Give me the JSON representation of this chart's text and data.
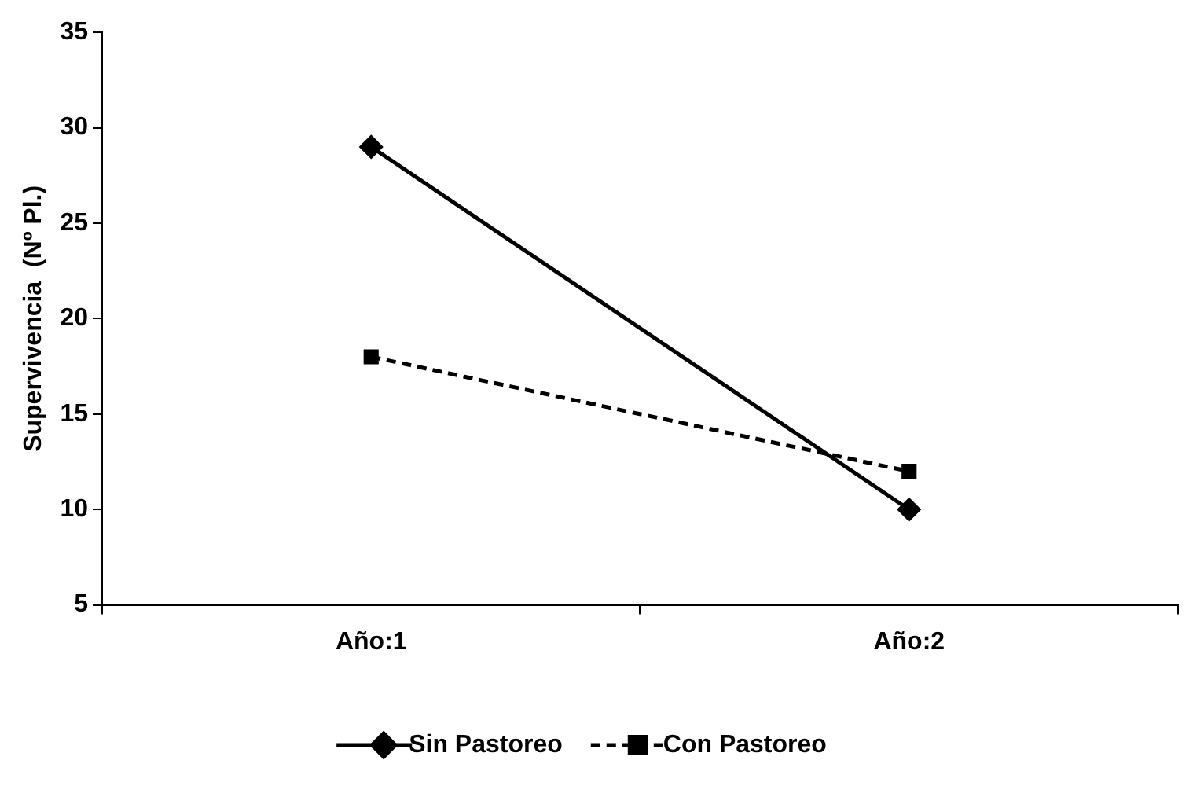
{
  "chart_data": {
    "type": "line",
    "ylabel": "Supervivencia  (Nº Pl.)",
    "categories": [
      "Año:1",
      "Año:2"
    ],
    "series": [
      {
        "name": "Sin Pastoreo",
        "color": "#000000",
        "values": [
          29,
          10
        ],
        "marker": "diamond",
        "line_style": "solid"
      },
      {
        "name": "Con Pastoreo",
        "color": "#000000",
        "values": [
          18,
          12
        ],
        "marker": "square",
        "line_style": "dashed"
      }
    ],
    "ylim": [
      5,
      35
    ],
    "yticks": [
      5,
      10,
      15,
      20,
      25,
      30,
      35
    ],
    "grid": false,
    "legend": "bottom"
  }
}
